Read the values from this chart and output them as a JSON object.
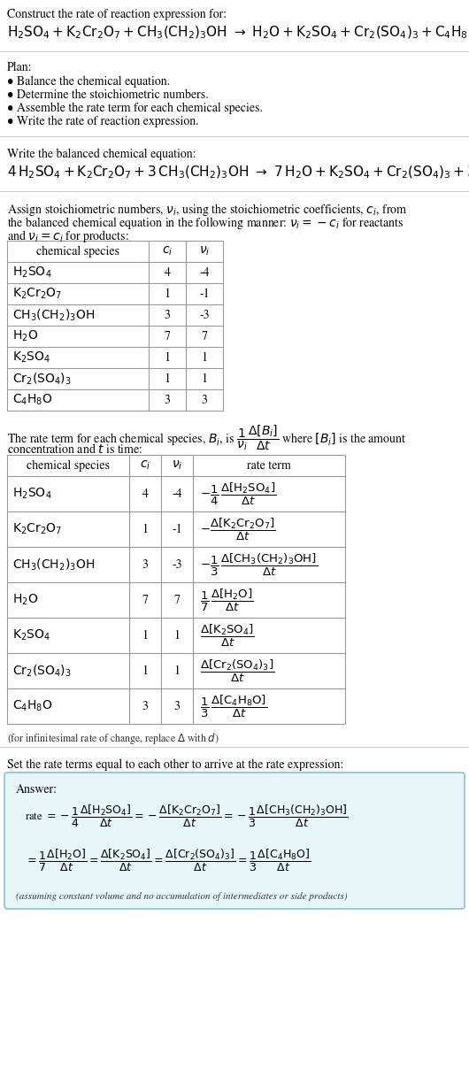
{
  "bg_color": "#ffffff",
  "text_color": "#000000",
  "title_line1": "Construct the rate of reaction expression for:",
  "plan_header": "Plan:",
  "plan_items": [
    "• Balance the chemical equation.",
    "• Determine the stoichiometric numbers.",
    "• Assemble the rate term for each chemical species.",
    "• Write the rate of reaction expression."
  ],
  "balanced_header": "Write the balanced chemical equation:",
  "stoich_intro_parts": [
    "Assign stoichiometric numbers, ",
    "nu_i",
    ", using the stoichiometric coefficients, ",
    "c_i",
    ", from"
  ],
  "table1_headers": [
    "chemical species",
    "c_i",
    "nu_i"
  ],
  "table1_data": [
    [
      "H2SO4",
      "4",
      "-4"
    ],
    [
      "K2Cr2O7",
      "1",
      "-1"
    ],
    [
      "CH3(CH2)3OH",
      "3",
      "-3"
    ],
    [
      "H2O",
      "7",
      "7"
    ],
    [
      "K2SO4",
      "1",
      "1"
    ],
    [
      "Cr2(SO4)3",
      "1",
      "1"
    ],
    [
      "C4H8O",
      "3",
      "3"
    ]
  ],
  "table2_headers": [
    "chemical species",
    "c_i",
    "nu_i",
    "rate term"
  ],
  "table2_data_species": [
    "H2SO4",
    "K2Cr2O7",
    "CH3(CH2)3OH",
    "H2O",
    "K2SO4",
    "Cr2(SO4)3",
    "C4H8O"
  ],
  "table2_data_ci": [
    "4",
    "1",
    "3",
    "7",
    "1",
    "1",
    "3"
  ],
  "table2_data_nui": [
    "-4",
    "-1",
    "-3",
    "7",
    "1",
    "1",
    "3"
  ],
  "answer_box_color": "#e8f5f8",
  "answer_box_border": "#88c4d4",
  "separator_color": "#cccccc",
  "table_border_color": "#999999"
}
